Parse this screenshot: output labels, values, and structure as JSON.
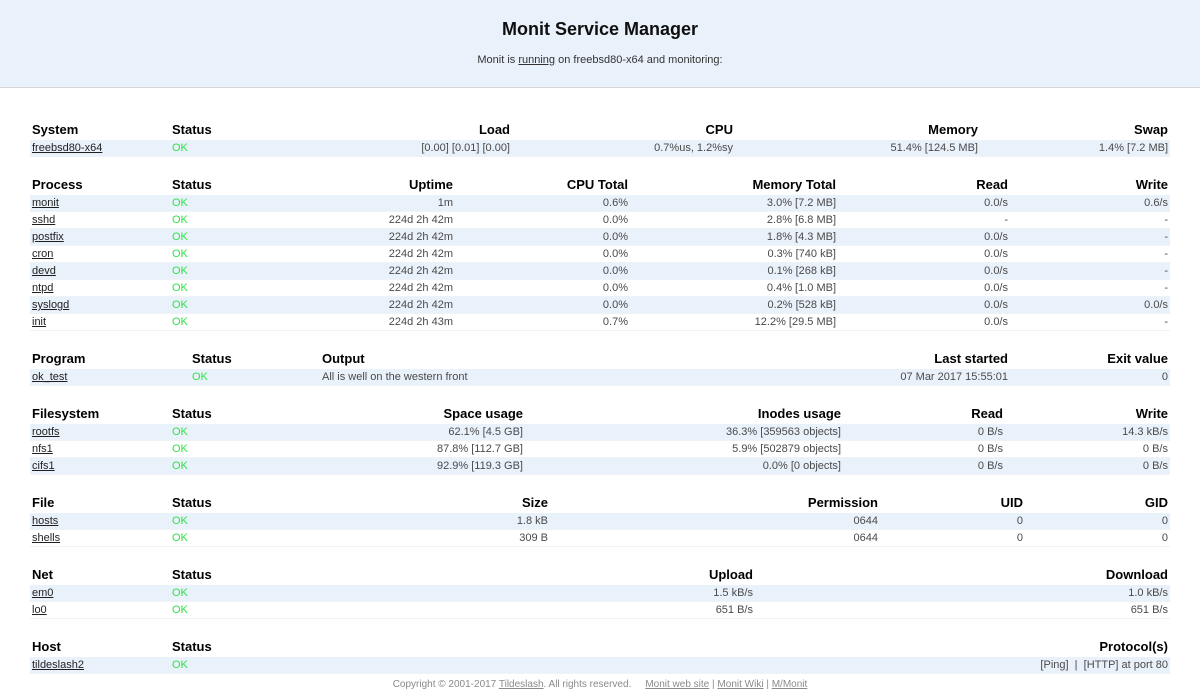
{
  "header": {
    "title": "Monit Service Manager",
    "subtitle_prefix": "Monit is ",
    "subtitle_link": "running",
    "subtitle_suffix": " on freebsd80-x64 and monitoring:"
  },
  "colors": {
    "status_ok": "#2fe345",
    "row_stripe": "#e9f1fa",
    "header_band": "#e9f2fb"
  },
  "tables": [
    {
      "name": "system",
      "columns": [
        "System",
        "Status",
        "Load",
        "CPU",
        "Memory",
        "Swap"
      ],
      "rows": [
        [
          "freebsd80-x64",
          "OK",
          "[0.00] [0.01] [0.00]",
          "0.7%us, 1.2%sy",
          "51.4% [124.5 MB]",
          "1.4% [7.2 MB]"
        ]
      ]
    },
    {
      "name": "process",
      "columns": [
        "Process",
        "Status",
        "Uptime",
        "CPU Total",
        "Memory Total",
        "Read",
        "Write"
      ],
      "rows": [
        [
          "monit",
          "OK",
          "1m",
          "0.6%",
          "3.0% [7.2 MB]",
          "0.0/s",
          "0.6/s"
        ],
        [
          "sshd",
          "OK",
          "224d 2h 42m",
          "0.0%",
          "2.8% [6.8 MB]",
          "-",
          "-"
        ],
        [
          "postfix",
          "OK",
          "224d 2h 42m",
          "0.0%",
          "1.8% [4.3 MB]",
          "0.0/s",
          "-"
        ],
        [
          "cron",
          "OK",
          "224d 2h 42m",
          "0.0%",
          "0.3% [740 kB]",
          "0.0/s",
          "-"
        ],
        [
          "devd",
          "OK",
          "224d 2h 42m",
          "0.0%",
          "0.1% [268 kB]",
          "0.0/s",
          "-"
        ],
        [
          "ntpd",
          "OK",
          "224d 2h 42m",
          "0.0%",
          "0.4% [1.0 MB]",
          "0.0/s",
          "-"
        ],
        [
          "syslogd",
          "OK",
          "224d 2h 42m",
          "0.0%",
          "0.2% [528 kB]",
          "0.0/s",
          "0.0/s"
        ],
        [
          "init",
          "OK",
          "224d 2h 43m",
          "0.7%",
          "12.2% [29.5 MB]",
          "0.0/s",
          "-"
        ]
      ]
    },
    {
      "name": "program",
      "columns": [
        "Program",
        "Status",
        "Output",
        "Last started",
        "Exit value"
      ],
      "rows": [
        [
          "ok_test",
          "OK",
          "All is well on the western front",
          "07 Mar 2017 15:55:01",
          "0"
        ]
      ]
    },
    {
      "name": "filesystem",
      "columns": [
        "Filesystem",
        "Status",
        "Space usage",
        "Inodes usage",
        "Read",
        "Write"
      ],
      "rows": [
        [
          "rootfs",
          "OK",
          "62.1% [4.5 GB]",
          "36.3% [359563 objects]",
          "0 B/s",
          "14.3 kB/s"
        ],
        [
          "nfs1",
          "OK",
          "87.8% [112.7 GB]",
          "5.9% [502879 objects]",
          "0 B/s",
          "0 B/s"
        ],
        [
          "cifs1",
          "OK",
          "92.9% [119.3 GB]",
          "0.0% [0 objects]",
          "0 B/s",
          "0 B/s"
        ]
      ]
    },
    {
      "name": "file",
      "columns": [
        "File",
        "Status",
        "Size",
        "Permission",
        "UID",
        "GID"
      ],
      "rows": [
        [
          "hosts",
          "OK",
          "1.8 kB",
          "0644",
          "0",
          "0"
        ],
        [
          "shells",
          "OK",
          "309 B",
          "0644",
          "0",
          "0"
        ]
      ]
    },
    {
      "name": "net",
      "columns": [
        "Net",
        "Status",
        "Upload",
        "Download"
      ],
      "rows": [
        [
          "em0",
          "OK",
          "1.5 kB/s",
          "1.0 kB/s"
        ],
        [
          "lo0",
          "OK",
          "651 B/s",
          "651 B/s"
        ]
      ]
    },
    {
      "name": "host",
      "columns": [
        "Host",
        "Status",
        "Protocol(s)"
      ],
      "rows": [
        [
          "tildeslash2",
          "OK",
          "[Ping]  |  [HTTP] at port 80"
        ]
      ]
    }
  ],
  "footer": {
    "copyright_prefix": "Copyright © 2001-2017 ",
    "tildeslash": "Tildeslash",
    "copyright_suffix": ". All rights reserved.",
    "links": [
      "Monit web site",
      "Monit Wiki",
      "M/Monit"
    ],
    "separator": "|"
  }
}
